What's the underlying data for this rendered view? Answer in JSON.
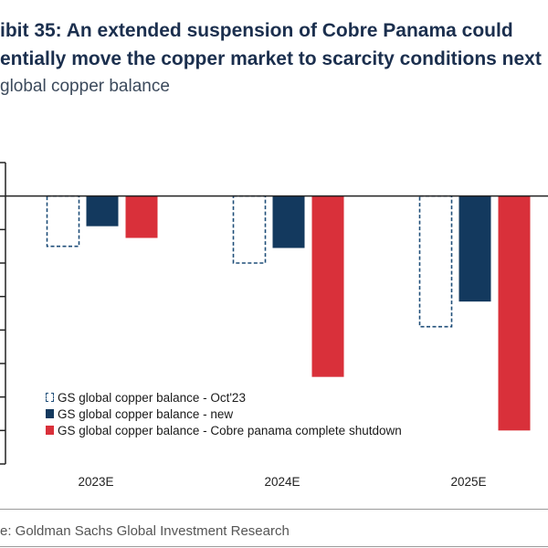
{
  "title_line1": "ibit 35: An extended suspension of Cobre Panama could",
  "title_line2": "entially move the copper market to scarcity conditions next",
  "subtitle": "global copper balance",
  "source": "e: Goldman Sachs Global Investment Research",
  "chart_data": {
    "type": "bar",
    "categories": [
      "2023E",
      "2024E",
      "2025E"
    ],
    "series": [
      {
        "name": "GS global copper balance - Oct'23",
        "values": [
          -150,
          -200,
          -390
        ],
        "style": "dashed",
        "color": "#1f4e79"
      },
      {
        "name": "GS global copper balance - new",
        "values": [
          -90,
          -155,
          -315
        ],
        "style": "solid",
        "color": "#13395e"
      },
      {
        "name": "GS global copper balance - Cobre panama complete shutdown",
        "values": [
          -125,
          -540,
          -700
        ],
        "style": "solid",
        "color": "#d9303a"
      }
    ],
    "ylim": [
      -800,
      100
    ],
    "legend_position": "bottom-left"
  }
}
